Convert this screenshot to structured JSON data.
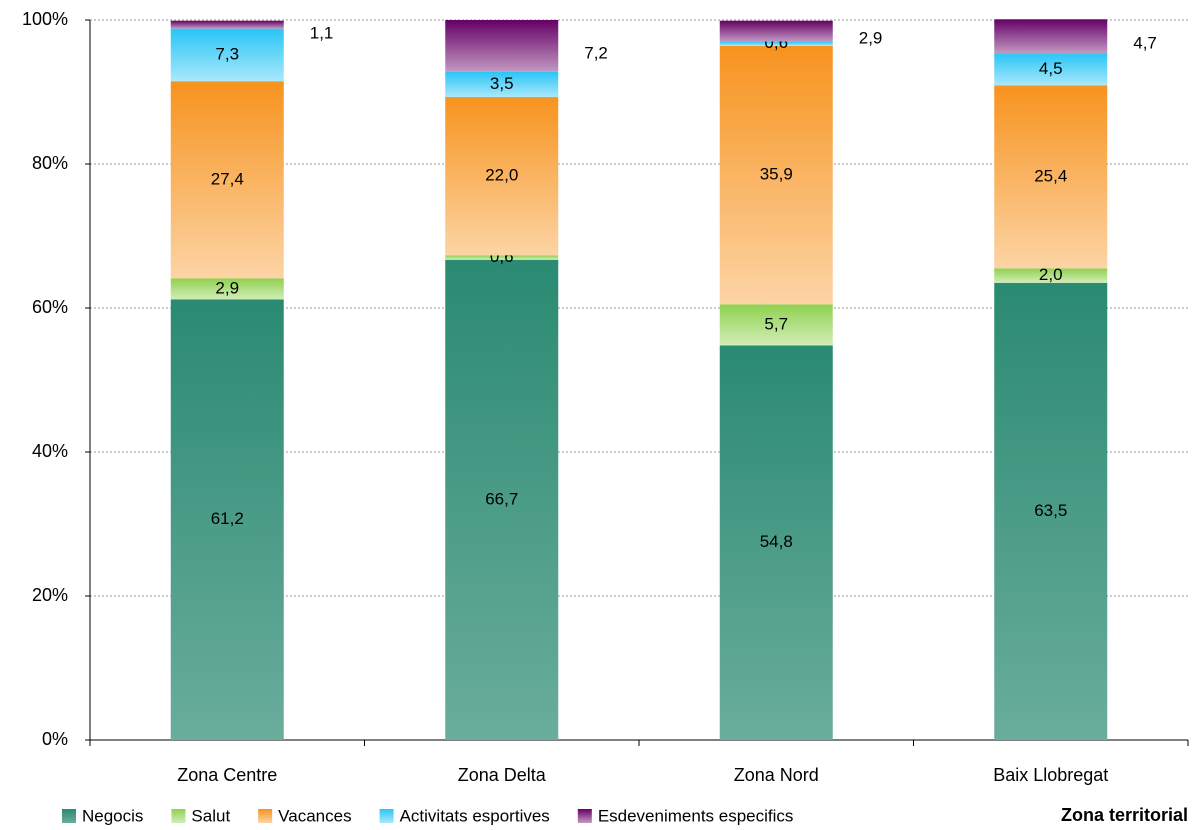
{
  "chart_data": {
    "type": "stacked_bar_100",
    "x_label": "Zona territorial",
    "categories": [
      "Zona Centre",
      "Zona Delta",
      "Zona Nord",
      "Baix Llobregat"
    ],
    "series": [
      {
        "name": "Negocis",
        "color": "#2a8a72",
        "values": [
          61.2,
          66.7,
          54.8,
          63.5
        ],
        "value_labels": [
          "61,2",
          "66,7",
          "54,8",
          "63,5"
        ]
      },
      {
        "name": "Salut",
        "color": "#8fd14f",
        "values": [
          2.9,
          0.6,
          5.7,
          2.0
        ],
        "value_labels": [
          "2,9",
          "0,6",
          "5,7",
          "2,0"
        ]
      },
      {
        "name": "Vacances",
        "color": "#f7931e",
        "values": [
          27.4,
          22.0,
          35.9,
          25.4
        ],
        "value_labels": [
          "27,4",
          "22,0",
          "35,9",
          "25,4"
        ]
      },
      {
        "name": "Activitats esportives",
        "color": "#29c5f6",
        "values": [
          7.3,
          3.5,
          0.6,
          4.5
        ],
        "value_labels": [
          "7,3",
          "3,5",
          "0,6",
          "4,5"
        ]
      },
      {
        "name": "Esdeveniments especifics",
        "color": "#660066",
        "values": [
          1.1,
          7.2,
          2.9,
          4.7
        ],
        "value_labels": [
          "1,1",
          "7,2",
          "2,9",
          "4,7"
        ]
      }
    ],
    "ylim": [
      0,
      100
    ],
    "yticks": [
      {
        "value": 0,
        "label": "0%"
      },
      {
        "value": 20,
        "label": "20%"
      },
      {
        "value": 40,
        "label": "40%"
      },
      {
        "value": 60,
        "label": "60%"
      },
      {
        "value": 80,
        "label": "80%"
      },
      {
        "value": 100,
        "label": "100%"
      }
    ],
    "grid": true
  }
}
